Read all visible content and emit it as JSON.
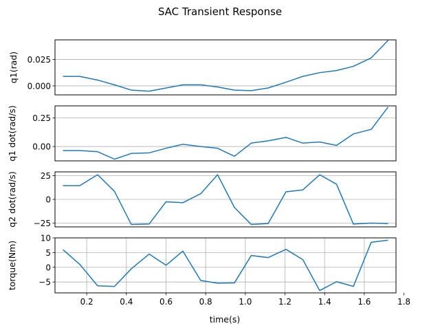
{
  "figure": {
    "title": "SAC Transient Response"
  },
  "colors": {
    "line": "#1f77b4",
    "grid": "#b0b0b0"
  },
  "chart_data": {
    "type": "line",
    "title": "SAC Transient Response",
    "xlabel": "time(s)",
    "xlim": [
      0.04,
      1.76
    ],
    "xticks": [
      0.2,
      0.4,
      0.6,
      0.8,
      1.0,
      1.2,
      1.4,
      1.6,
      1.8
    ],
    "xtick_labels": [
      "0.2",
      "0.4",
      "0.6",
      "0.8",
      "1.0",
      "1.2",
      "1.4",
      "1.6",
      "1.8"
    ],
    "x": [
      0.08,
      0.165,
      0.255,
      0.34,
      0.425,
      0.515,
      0.6,
      0.685,
      0.775,
      0.86,
      0.945,
      1.03,
      1.115,
      1.205,
      1.29,
      1.375,
      1.46,
      1.545,
      1.635,
      1.72
    ],
    "subplots": [
      {
        "ylabel": "q1(rad)",
        "ylim": [
          -0.0085,
          0.0435
        ],
        "yticks": [
          0.0,
          0.025
        ],
        "ytick_labels": [
          "0.000",
          "0.025"
        ],
        "ygrid": true,
        "xgrid": false,
        "values": [
          0.009,
          0.009,
          0.0055,
          0.001,
          -0.004,
          -0.005,
          -0.002,
          0.001,
          0.001,
          -0.001,
          -0.004,
          -0.0045,
          -0.002,
          0.0035,
          0.009,
          0.0125,
          0.0145,
          0.0185,
          0.0265,
          0.043
        ]
      },
      {
        "ylabel": "q1 dot(rad/s)",
        "ylim": [
          -0.125,
          0.355
        ],
        "yticks": [
          0.0,
          0.25
        ],
        "ytick_labels": [
          "0.00",
          "0.25"
        ],
        "ygrid": true,
        "xgrid": false,
        "values": [
          -0.035,
          -0.035,
          -0.045,
          -0.11,
          -0.06,
          -0.055,
          -0.015,
          0.02,
          0.0,
          -0.015,
          -0.085,
          0.03,
          0.05,
          0.08,
          0.03,
          0.04,
          0.01,
          0.11,
          0.15,
          0.345
        ]
      },
      {
        "ylabel": "q2 dot(rad/s)",
        "ylim": [
          -29,
          29
        ],
        "yticks": [
          -25,
          0,
          25
        ],
        "ytick_labels": [
          "−25",
          "0",
          "25"
        ],
        "ygrid": true,
        "xgrid": false,
        "values": [
          14.5,
          14.5,
          26,
          8.5,
          -26.5,
          -26,
          -2.5,
          -3.5,
          6,
          26,
          -8.5,
          -26.5,
          -25.5,
          8,
          10,
          26,
          16,
          -26,
          -25,
          -25.5
        ]
      },
      {
        "ylabel": "torque(Nm)",
        "ylim": [
          -8.7,
          10
        ],
        "yticks": [
          -5,
          0,
          5,
          10
        ],
        "ytick_labels": [
          "−5",
          "0",
          "5",
          "10"
        ],
        "ygrid": true,
        "xgrid": true,
        "values": [
          6,
          1,
          -6.3,
          -6.5,
          -0.5,
          4.5,
          0.7,
          5.5,
          -4.5,
          -5.4,
          -5.3,
          4,
          3.3,
          6.1,
          2.6,
          -7.9,
          -4.9,
          -6.5,
          8.5,
          9.2
        ]
      }
    ]
  }
}
